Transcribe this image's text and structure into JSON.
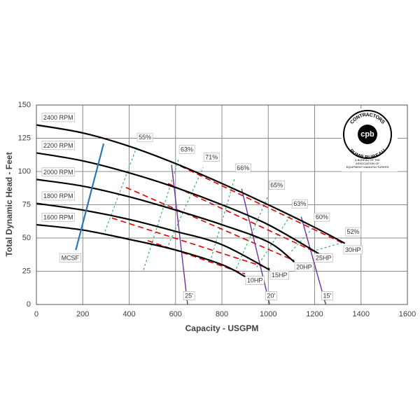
{
  "chart_data": {
    "type": "line",
    "xlabel": "Capacity - USGPM",
    "ylabel": "Total Dynamic Head - Feet",
    "xlim": [
      0,
      1600
    ],
    "ylim": [
      0,
      150
    ],
    "xticks": [
      0,
      200,
      400,
      600,
      800,
      1000,
      1200,
      1400,
      1600
    ],
    "yticks": [
      0,
      25,
      50,
      75,
      100,
      125,
      150
    ],
    "grid": true,
    "series": [
      {
        "name": "2400 RPM",
        "color": "#000000",
        "x": [
          0,
          200,
          400,
          600,
          800,
          1000,
          1200,
          1330
        ],
        "values": [
          135,
          129,
          119,
          106,
          91,
          75,
          58,
          46
        ]
      },
      {
        "name": "2200 RPM",
        "color": "#000000",
        "x": [
          0,
          200,
          400,
          600,
          800,
          1000,
          1220
        ],
        "values": [
          114,
          108,
          99,
          88,
          75,
          60,
          38
        ]
      },
      {
        "name": "2000 RPM",
        "color": "#000000",
        "x": [
          0,
          200,
          400,
          600,
          800,
          1000,
          1112
        ],
        "values": [
          94,
          89,
          81,
          71,
          60,
          47,
          32
        ]
      },
      {
        "name": "1800 RPM",
        "color": "#000000",
        "x": [
          0,
          200,
          400,
          600,
          800,
          1006
        ],
        "values": [
          76,
          71,
          64,
          55,
          45,
          26
        ]
      },
      {
        "name": "1600 RPM",
        "color": "#000000",
        "x": [
          0,
          200,
          400,
          600,
          800,
          900
        ],
        "values": [
          60,
          56,
          49,
          41,
          30,
          21
        ]
      },
      {
        "name": "MCSF",
        "color": "#2e75b6",
        "x": [
          170,
          290
        ],
        "values": [
          41,
          121
        ]
      }
    ],
    "hp_lines": [
      {
        "name": "10HP",
        "color": "#e00000",
        "x": [
          480,
          900
        ],
        "values": [
          48,
          23
        ]
      },
      {
        "name": "15HP",
        "color": "#e00000",
        "x": [
          326,
          1006
        ],
        "values": [
          65,
          27
        ]
      },
      {
        "name": "20HP",
        "color": "#e00000",
        "x": [
          386,
          1112
        ],
        "values": [
          88,
          33
        ]
      },
      {
        "name": "25HP",
        "color": "#e00000",
        "x": [
          568,
          1196
        ],
        "values": [
          91,
          40
        ]
      },
      {
        "name": "30HP",
        "color": "#e00000",
        "x": [
          622,
          1323
        ],
        "values": [
          104,
          46
        ]
      }
    ],
    "efficiency_lines": [
      {
        "name": "55%",
        "color": "#3cb371",
        "x": [
          296,
          432
        ],
        "values": [
          55,
          118
        ]
      },
      {
        "name": "63%",
        "color": "#3cb371",
        "x": [
          462,
          613
        ],
        "values": [
          26,
          109
        ]
      },
      {
        "name": "71%",
        "color": "#3cb371",
        "x": [
          562,
          719
        ],
        "values": [
          42,
          103
        ]
      },
      {
        "name": "66%",
        "color": "#3cb371",
        "x": [
          749,
          855
        ],
        "values": [
          32,
          95
        ]
      },
      {
        "name": "65%",
        "color": "#3cb371",
        "x": [
          862,
          1000
        ],
        "values": [
          27,
          82
        ]
      },
      {
        "name": "63%",
        "color": "#3cb371",
        "x": [
          950,
          1100
        ],
        "values": [
          28,
          68
        ]
      },
      {
        "name": "60%",
        "color": "#3cb371",
        "x": [
          1100,
          1195
        ],
        "values": [
          40,
          58
        ]
      },
      {
        "name": "52%",
        "color": "#3cb371",
        "x": [
          1190,
          1330
        ],
        "values": [
          40,
          47
        ]
      }
    ],
    "npsh_lines": [
      {
        "name": "25'",
        "color": "#7030a0",
        "x": [
          583,
          652
        ],
        "values": [
          105,
          0
        ]
      },
      {
        "name": "20'",
        "color": "#7030a0",
        "x": [
          885,
          1006
        ],
        "values": [
          87,
          0
        ]
      },
      {
        "name": "15'",
        "color": "#7030a0",
        "x": [
          1142,
          1248
        ],
        "values": [
          66,
          0
        ]
      }
    ]
  },
  "logo": {
    "mark": "cpb",
    "ring_top": "CONTRACTORS",
    "ring_bottom": "PUMP BUREAU",
    "caption": [
      "A BUREAU OF THE",
      "ASSOCIATION OF",
      "EQUIPMENT MANUFACTURERS"
    ]
  }
}
